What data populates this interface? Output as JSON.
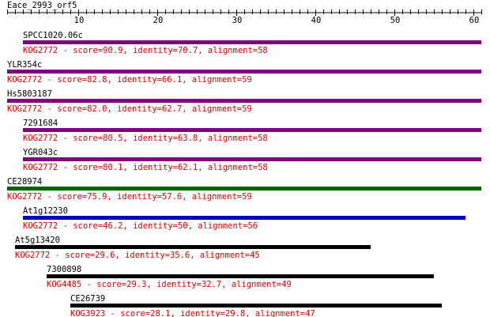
{
  "query": {
    "title": "Eace_2993_orf5",
    "axis_min": 1,
    "axis_max": 61,
    "labeled_ticks": [
      10,
      20,
      30,
      40,
      50,
      60
    ],
    "tick_labels": [
      "10",
      "20",
      "30",
      "40",
      "50",
      "60"
    ]
  },
  "colors": {
    "purple": "#800080",
    "green": "#006400",
    "blue": "#0000c8",
    "black": "#000000",
    "desc_text": "#e00000"
  },
  "hits": [
    {
      "name": "SPCC1020.06c",
      "desc": "KOG2772 - score=90.9, identity=70.7, alignment=58",
      "start": 3,
      "end": 61,
      "color": "purple"
    },
    {
      "name": "YLR354c",
      "desc": "KOG2772 - score=82.8, identity=66.1, alignment=59",
      "start": 1,
      "end": 61,
      "color": "purple"
    },
    {
      "name": "Hs5803187",
      "desc": "KOG2772 - score=82.0, identity=62.7, alignment=59",
      "start": 1,
      "end": 61,
      "color": "purple"
    },
    {
      "name": "7291684",
      "desc": "KOG2772 - score=80.5, identity=63.8, alignment=58",
      "start": 3,
      "end": 61,
      "color": "purple"
    },
    {
      "name": "YGR043c",
      "desc": "KOG2772 - score=80.1, identity=62.1, alignment=58",
      "start": 3,
      "end": 61,
      "color": "purple"
    },
    {
      "name": "CE28974",
      "desc": "KOG2772 - score=75.9, identity=57.6, alignment=59",
      "start": 1,
      "end": 61,
      "color": "green"
    },
    {
      "name": "At1g12230",
      "desc": "KOG2772 - score=46.2, identity=50, alignment=56",
      "start": 3,
      "end": 59,
      "color": "blue"
    },
    {
      "name": "At5g13420",
      "desc": "KOG2772 - score=29.6, identity=35.6, alignment=45",
      "start": 2,
      "end": 47,
      "color": "black"
    },
    {
      "name": "7300898",
      "desc": "KOG4485 - score=29.3, identity=32.7, alignment=49",
      "start": 6,
      "end": 55,
      "color": "black"
    },
    {
      "name": "CE26739",
      "desc": "KOG3923 - score=28.1, identity=29.8, alignment=47",
      "start": 9,
      "end": 56,
      "color": "black"
    }
  ]
}
